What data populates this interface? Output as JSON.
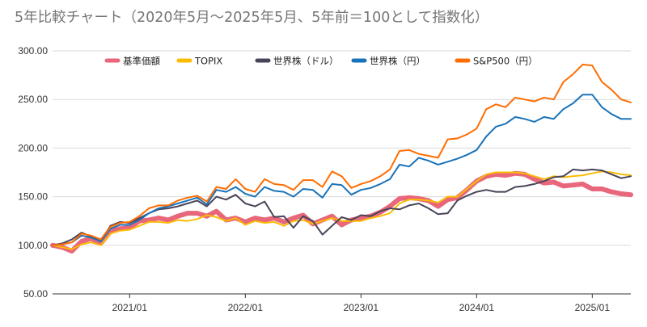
{
  "chart_data": {
    "type": "line",
    "title": "5年比較チャート（2020年5月～2025年5月、5年前＝100として指数化）",
    "xlabel": "",
    "ylabel": "",
    "ylim": [
      50,
      300
    ],
    "y_ticks": [
      "300.00",
      "250.00",
      "200.00",
      "150.00",
      "100.00",
      "50.00"
    ],
    "x_ticks": [
      "2021/01",
      "2022/01",
      "2023/01",
      "2024/01",
      "2025/01"
    ],
    "grid": true,
    "legend_position": "top",
    "x": [
      "2020-05",
      "2020-06",
      "2020-07",
      "2020-08",
      "2020-09",
      "2020-10",
      "2020-11",
      "2020-12",
      "2021-01",
      "2021-02",
      "2021-03",
      "2021-04",
      "2021-05",
      "2021-06",
      "2021-07",
      "2021-08",
      "2021-09",
      "2021-10",
      "2021-11",
      "2021-12",
      "2022-01",
      "2022-02",
      "2022-03",
      "2022-04",
      "2022-05",
      "2022-06",
      "2022-07",
      "2022-08",
      "2022-09",
      "2022-10",
      "2022-11",
      "2022-12",
      "2023-01",
      "2023-02",
      "2023-03",
      "2023-04",
      "2023-05",
      "2023-06",
      "2023-07",
      "2023-08",
      "2023-09",
      "2023-10",
      "2023-11",
      "2023-12",
      "2024-01",
      "2024-02",
      "2024-03",
      "2024-04",
      "2024-05",
      "2024-06",
      "2024-07",
      "2024-08",
      "2024-09",
      "2024-10",
      "2024-11",
      "2024-12",
      "2025-01",
      "2025-02",
      "2025-03",
      "2025-04",
      "2025-05"
    ],
    "series": [
      {
        "name": "基準価額",
        "color": "#e8677a",
        "width": 6,
        "values": [
          100,
          98,
          94,
          104,
          107,
          102,
          114,
          117,
          118,
          125,
          126,
          128,
          126,
          130,
          133,
          133,
          130,
          135,
          126,
          128,
          124,
          128,
          126,
          128,
          124,
          128,
          131,
          122,
          126,
          130,
          121,
          126,
          128,
          130,
          134,
          140,
          148,
          149,
          148,
          146,
          140,
          147,
          149,
          157,
          166,
          171,
          173,
          172,
          174,
          173,
          168,
          164,
          165,
          161,
          162,
          163,
          158,
          158,
          155,
          153,
          152
        ]
      },
      {
        "name": "TOPIX",
        "color": "#fbbc04",
        "width": 2,
        "values": [
          100,
          98,
          96,
          101,
          103,
          100,
          112,
          115,
          116,
          120,
          124,
          124,
          123,
          126,
          125,
          127,
          131,
          129,
          125,
          128,
          121,
          125,
          123,
          124,
          120,
          125,
          126,
          122,
          125,
          128,
          125,
          125,
          125,
          128,
          130,
          133,
          143,
          147,
          147,
          146,
          144,
          150,
          150,
          158,
          166,
          173,
          175,
          175,
          175,
          174,
          171,
          168,
          171,
          170,
          171,
          172,
          174,
          176,
          175,
          173,
          172
        ]
      },
      {
        "name": "世界株（ドル）",
        "color": "#4a4458",
        "width": 2,
        "values": [
          100,
          102,
          106,
          113,
          109,
          104,
          120,
          124,
          123,
          128,
          133,
          137,
          138,
          140,
          143,
          146,
          140,
          150,
          147,
          152,
          143,
          140,
          145,
          129,
          130,
          118,
          130,
          125,
          111,
          120,
          129,
          126,
          131,
          130,
          135,
          138,
          137,
          141,
          143,
          138,
          132,
          133,
          146,
          151,
          155,
          157,
          155,
          155,
          160,
          161,
          163,
          166,
          170,
          171,
          178,
          177,
          178,
          177,
          173,
          169,
          171
        ]
      },
      {
        "name": "世界株（円）",
        "color": "#1a73b8",
        "width": 2,
        "values": [
          100,
          101,
          103,
          110,
          108,
          104,
          117,
          121,
          121,
          126,
          133,
          138,
          140,
          143,
          146,
          149,
          142,
          157,
          155,
          160,
          153,
          150,
          160,
          156,
          155,
          150,
          158,
          157,
          149,
          163,
          162,
          152,
          157,
          159,
          163,
          168,
          183,
          181,
          190,
          187,
          183,
          186,
          189,
          193,
          198,
          212,
          222,
          225,
          232,
          230,
          227,
          232,
          230,
          240,
          246,
          255,
          255,
          242,
          235,
          230,
          230
        ]
      },
      {
        "name": "S&P500（円）",
        "color": "#ff6d01",
        "width": 2,
        "values": [
          100,
          101,
          103,
          112,
          110,
          106,
          119,
          123,
          124,
          130,
          138,
          141,
          141,
          146,
          149,
          151,
          145,
          160,
          158,
          168,
          158,
          155,
          168,
          163,
          162,
          157,
          167,
          167,
          160,
          176,
          171,
          159,
          163,
          166,
          171,
          178,
          197,
          198,
          194,
          192,
          190,
          209,
          210,
          214,
          220,
          240,
          245,
          242,
          252,
          250,
          248,
          252,
          250,
          268,
          276,
          286,
          285,
          268,
          260,
          250,
          247
        ]
      }
    ]
  }
}
